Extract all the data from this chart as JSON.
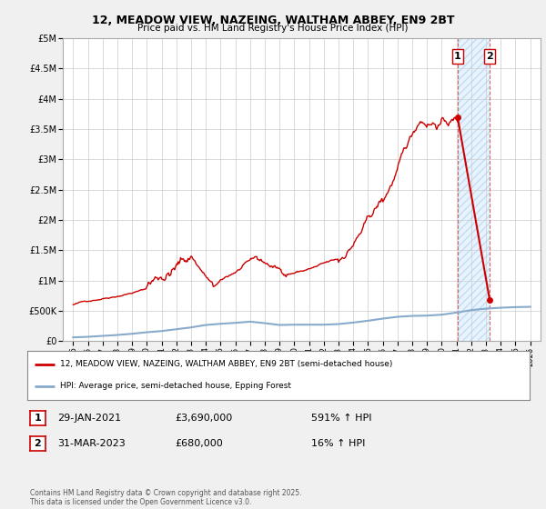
{
  "title": "12, MEADOW VIEW, NAZEING, WALTHAM ABBEY, EN9 2BT",
  "subtitle": "Price paid vs. HM Land Registry's House Price Index (HPI)",
  "legend_line1": "12, MEADOW VIEW, NAZEING, WALTHAM ABBEY, EN9 2BT (semi-detached house)",
  "legend_line2": "HPI: Average price, semi-detached house, Epping Forest",
  "annotation1_label": "1",
  "annotation1_date": "29-JAN-2021",
  "annotation1_price": "£3,690,000",
  "annotation1_hpi": "591% ↑ HPI",
  "annotation2_label": "2",
  "annotation2_date": "31-MAR-2023",
  "annotation2_price": "£680,000",
  "annotation2_hpi": "16% ↑ HPI",
  "footer": "Contains HM Land Registry data © Crown copyright and database right 2025.\nThis data is licensed under the Open Government Licence v3.0.",
  "bg_color": "#f0f0f0",
  "plot_bg_color": "#ffffff",
  "red_line_color": "#cc0000",
  "blue_line_color": "#88aacc",
  "grid_color": "#cccccc",
  "ylim": [
    0,
    5000000
  ],
  "yticks": [
    0,
    500000,
    1000000,
    1500000,
    2000000,
    2500000,
    3000000,
    3500000,
    4000000,
    4500000,
    5000000
  ],
  "ytick_labels": [
    "£0",
    "£500K",
    "£1M",
    "£1.5M",
    "£2M",
    "£2.5M",
    "£3M",
    "£3.5M",
    "£4M",
    "£4.5M",
    "£5M"
  ],
  "x_years": [
    1995,
    1996,
    1997,
    1998,
    1999,
    2000,
    2001,
    2002,
    2003,
    2004,
    2005,
    2006,
    2007,
    2008,
    2009,
    2010,
    2011,
    2012,
    2013,
    2014,
    2015,
    2016,
    2017,
    2018,
    2019,
    2020,
    2021,
    2022,
    2023,
    2024,
    2025,
    2026
  ],
  "hpi_x": [
    1995,
    1996,
    1997,
    1998,
    1999,
    2000,
    2001,
    2002,
    2003,
    2004,
    2005,
    2006,
    2007,
    2008,
    2009,
    2010,
    2011,
    2012,
    2013,
    2014,
    2015,
    2016,
    2017,
    2018,
    2019,
    2020,
    2021,
    2022,
    2023,
    2024,
    2025,
    2026
  ],
  "hpi_y": [
    60000,
    70000,
    85000,
    100000,
    120000,
    145000,
    165000,
    195000,
    225000,
    265000,
    285000,
    300000,
    320000,
    295000,
    265000,
    270000,
    270000,
    270000,
    280000,
    305000,
    335000,
    370000,
    400000,
    415000,
    420000,
    435000,
    470000,
    510000,
    535000,
    550000,
    560000,
    565000
  ],
  "point1_x": 2021.08,
  "point1_y": 3690000,
  "point2_x": 2023.25,
  "point2_y": 680000,
  "xlim_left": 1994.3,
  "xlim_right": 2026.7
}
